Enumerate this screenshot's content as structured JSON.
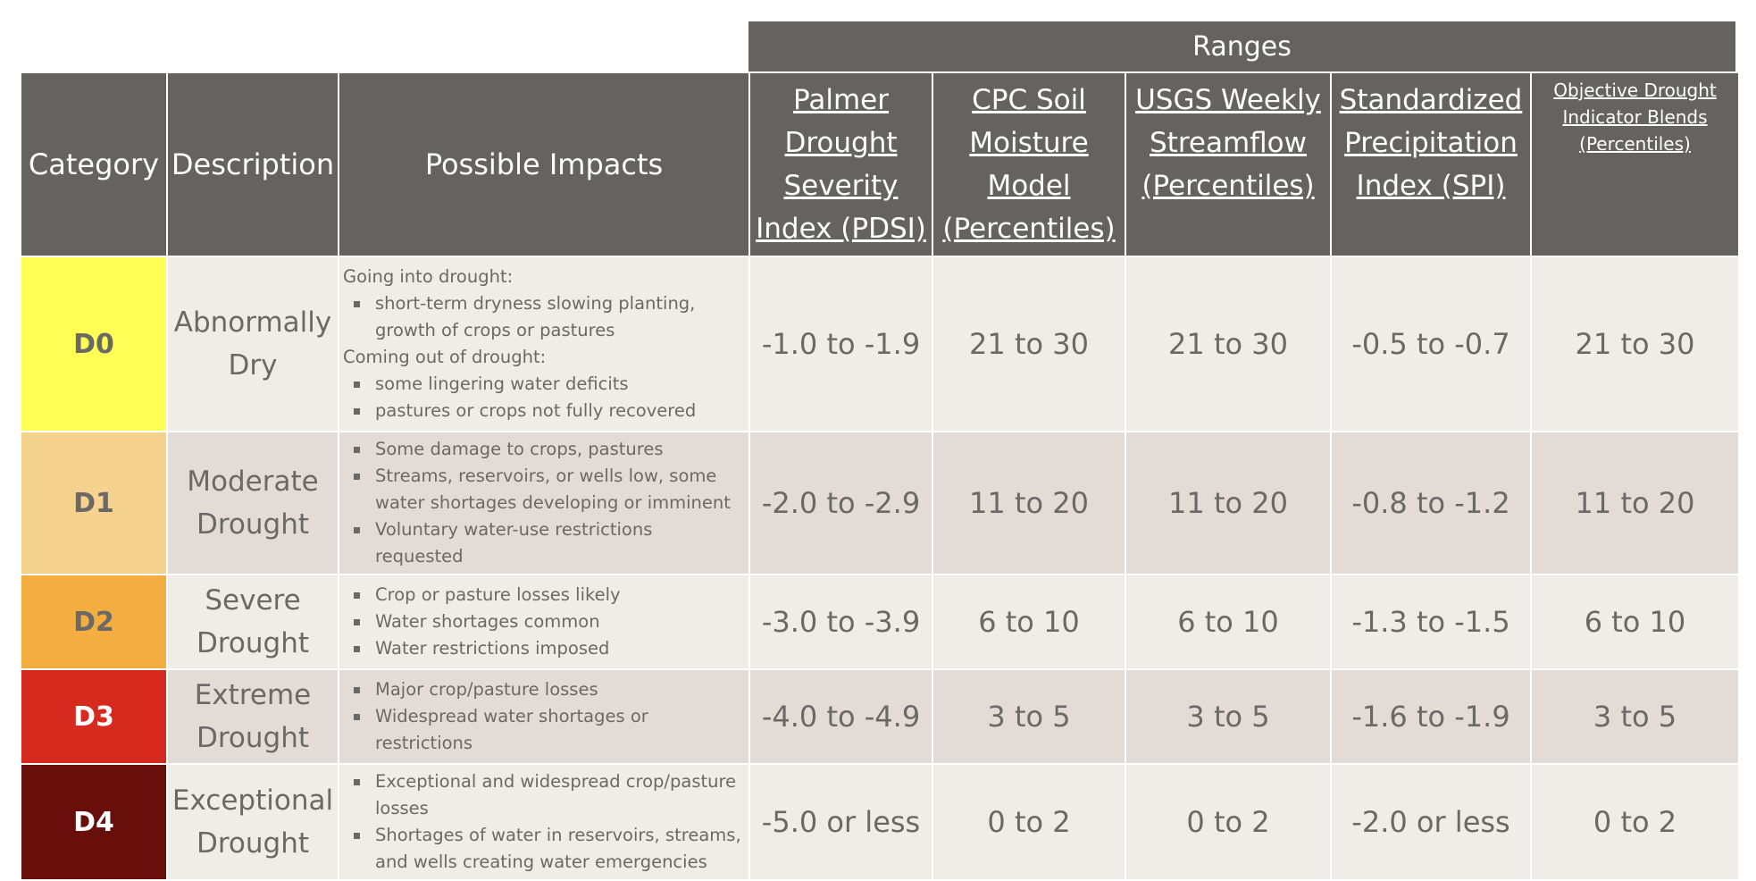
{
  "ranges_label": "Ranges",
  "headers": {
    "category": "Category",
    "description": "Description",
    "impacts": "Possible Impacts",
    "pdsi": "Palmer Drought Severity Index (PDSI)",
    "cpc": "CPC Soil Moisture Model (Percentiles)",
    "usgs": "USGS Weekly Streamflow (Percentiles)",
    "spi": "Standardized Precipitation Index (SPI)",
    "blends": "Objective Drought Indicator Blends (Percentiles)"
  },
  "rows": [
    {
      "category": "D0",
      "color": "#ffff55",
      "text_color": "#6b6866",
      "description": "Abnormally Dry",
      "impacts": {
        "going_into": "Going into drought:",
        "going_items": [
          "short-term dryness slowing planting, growth of crops or pastures"
        ],
        "coming_out": "Coming out of drought:",
        "coming_items": [
          "some lingering water deficits",
          "pastures or crops not fully recovered"
        ]
      },
      "pdsi": "-1.0 to -1.9",
      "cpc": "21 to 30",
      "usgs": "21 to 30",
      "spi": "-0.5 to -0.7",
      "blends": "21 to 30"
    },
    {
      "category": "D1",
      "color": "#f5d38f",
      "text_color": "#6b6866",
      "description": "Moderate Drought",
      "impacts": {
        "items": [
          "Some damage to crops, pastures",
          "Streams, reservoirs, or wells low, some water shortages developing or imminent",
          "Voluntary water-use restrictions requested"
        ]
      },
      "pdsi": "-2.0 to -2.9",
      "cpc": "11 to 20",
      "usgs": "11 to 20",
      "spi": "-0.8 to -1.2",
      "blends": "11 to 20"
    },
    {
      "category": "D2",
      "color": "#f3ad41",
      "text_color": "#6b6866",
      "description": "Severe Drought",
      "impacts": {
        "items": [
          "Crop or pasture losses likely",
          "Water shortages common",
          "Water restrictions imposed"
        ]
      },
      "pdsi": "-3.0 to -3.9",
      "cpc": "6 to 10",
      "usgs": "6 to 10",
      "spi": "-1.3 to -1.5",
      "blends": "6 to 10"
    },
    {
      "category": "D3",
      "color": "#d62a1f",
      "text_color": "#ffffff",
      "description": "Extreme Drought",
      "impacts": {
        "items": [
          "Major crop/pasture losses",
          "Widespread water shortages or restrictions"
        ]
      },
      "pdsi": "-4.0 to -4.9",
      "cpc": "3 to 5",
      "usgs": "3 to 5",
      "spi": "-1.6 to -1.9",
      "blends": "3 to 5"
    },
    {
      "category": "D4",
      "color": "#680f0c",
      "text_color": "#ffffff",
      "description": "Exceptional Drought",
      "impacts": {
        "items": [
          "Exceptional and widespread crop/pasture losses",
          "Shortages of water in reservoirs, streams, and wells creating water emergencies"
        ]
      },
      "pdsi": "-5.0 or less",
      "cpc": "0 to 2",
      "usgs": "0 to 2",
      "spi": "-2.0 or less",
      "blends": "0 to 2"
    }
  ]
}
